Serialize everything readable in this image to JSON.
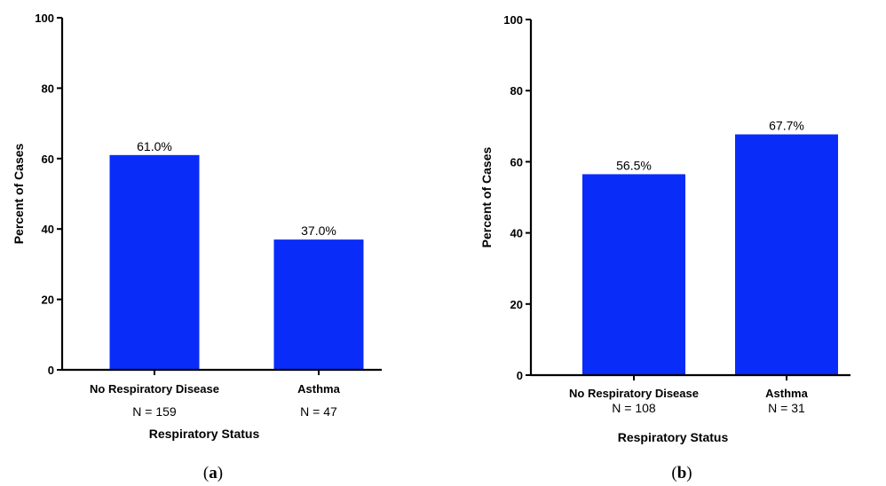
{
  "chart_data": [
    {
      "type": "bar",
      "panel": "(a)",
      "panel_letter": "a",
      "categories": [
        "No Respiratory Disease",
        "Asthma"
      ],
      "n_labels": [
        "N = 159",
        "N = 47"
      ],
      "values": [
        61.0,
        37.0
      ],
      "value_labels": [
        "61.0%",
        "37.0%"
      ],
      "xlabel": "Respiratory Status",
      "ylabel": "Percent of Cases",
      "ylim": [
        0,
        100
      ],
      "yticks": [
        0,
        20,
        40,
        60,
        80,
        100
      ],
      "bar_color": "#0a2cf8"
    },
    {
      "type": "bar",
      "panel": "(b)",
      "panel_letter": "b",
      "categories": [
        "No Respiratory Disease",
        "Asthma"
      ],
      "n_labels": [
        "N = 108",
        "N = 31"
      ],
      "values": [
        56.5,
        67.7
      ],
      "value_labels": [
        "56.5%",
        "67.7%"
      ],
      "xlabel": "Respiratory Status",
      "ylabel": "Percent of Cases",
      "ylim": [
        0,
        100
      ],
      "yticks": [
        0,
        20,
        40,
        60,
        80,
        100
      ],
      "bar_color": "#0a2cf8"
    }
  ]
}
